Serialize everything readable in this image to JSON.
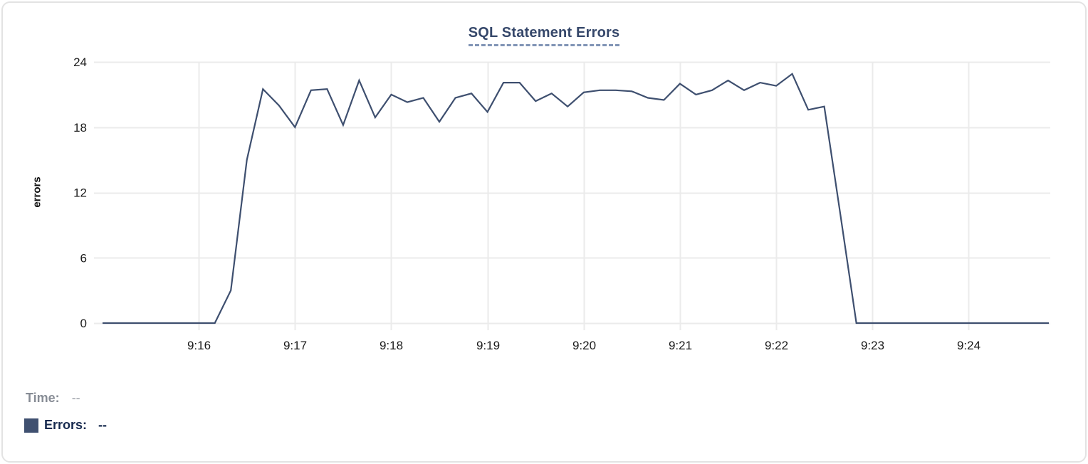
{
  "chart_data": {
    "type": "line",
    "title": "SQL Statement Errors",
    "xlabel": "",
    "ylabel": "errors",
    "ylim": [
      0,
      24
    ],
    "y_ticks": [
      0,
      6,
      12,
      18,
      24
    ],
    "x_tick_labels": [
      "9:16",
      "9:17",
      "9:18",
      "9:19",
      "9:20",
      "9:21",
      "9:22",
      "9:23",
      "9:24"
    ],
    "grid": true,
    "legend_position": "bottom-left",
    "series": [
      {
        "name": "Errors",
        "color": "#3e4f6f",
        "x": [
          "9:15:00",
          "9:15:10",
          "9:15:20",
          "9:15:30",
          "9:15:40",
          "9:15:50",
          "9:16:00",
          "9:16:10",
          "9:16:20",
          "9:16:30",
          "9:16:40",
          "9:16:50",
          "9:17:00",
          "9:17:10",
          "9:17:20",
          "9:17:30",
          "9:17:40",
          "9:17:50",
          "9:18:00",
          "9:18:10",
          "9:18:20",
          "9:18:30",
          "9:18:40",
          "9:18:50",
          "9:19:00",
          "9:19:10",
          "9:19:20",
          "9:19:30",
          "9:19:40",
          "9:19:50",
          "9:20:00",
          "9:20:10",
          "9:20:20",
          "9:20:30",
          "9:20:40",
          "9:20:50",
          "9:21:00",
          "9:21:10",
          "9:21:20",
          "9:21:30",
          "9:21:40",
          "9:21:50",
          "9:22:00",
          "9:22:10",
          "9:22:20",
          "9:22:30",
          "9:22:40",
          "9:22:50",
          "9:23:00",
          "9:23:10",
          "9:23:20",
          "9:23:30",
          "9:23:40",
          "9:23:50",
          "9:24:00",
          "9:24:10",
          "9:24:20",
          "9:24:30",
          "9:24:40",
          "9:24:50"
        ],
        "values": [
          0,
          0,
          0,
          0,
          0,
          0,
          0,
          0,
          3,
          15,
          21.5,
          20,
          18,
          21.4,
          21.5,
          18.2,
          22.3,
          18.9,
          21,
          20.3,
          20.7,
          18.5,
          20.7,
          21.1,
          19.4,
          22.1,
          22.1,
          20.4,
          21.1,
          19.9,
          21.2,
          21.4,
          21.4,
          21.3,
          20.7,
          20.5,
          22,
          21,
          21.4,
          22.3,
          21.4,
          22.1,
          21.8,
          22.9,
          19.6,
          19.9,
          10,
          0,
          0,
          0,
          0,
          0,
          0,
          0,
          0,
          0,
          0,
          0,
          0,
          0
        ]
      }
    ]
  },
  "readout": {
    "time_label": "Time:",
    "time_value": "--",
    "errors_label": "Errors:",
    "errors_value": "--"
  },
  "colors": {
    "line": "#3e4f6f",
    "swatch": "#3f5070",
    "title": "#35476a",
    "title_underline": "#8094b5",
    "grid": "#ebebeb",
    "tick_text": "#1b1b1b",
    "time_text": "#878c95",
    "errors_text": "#16294e",
    "card_border": "#e3e3e3"
  }
}
